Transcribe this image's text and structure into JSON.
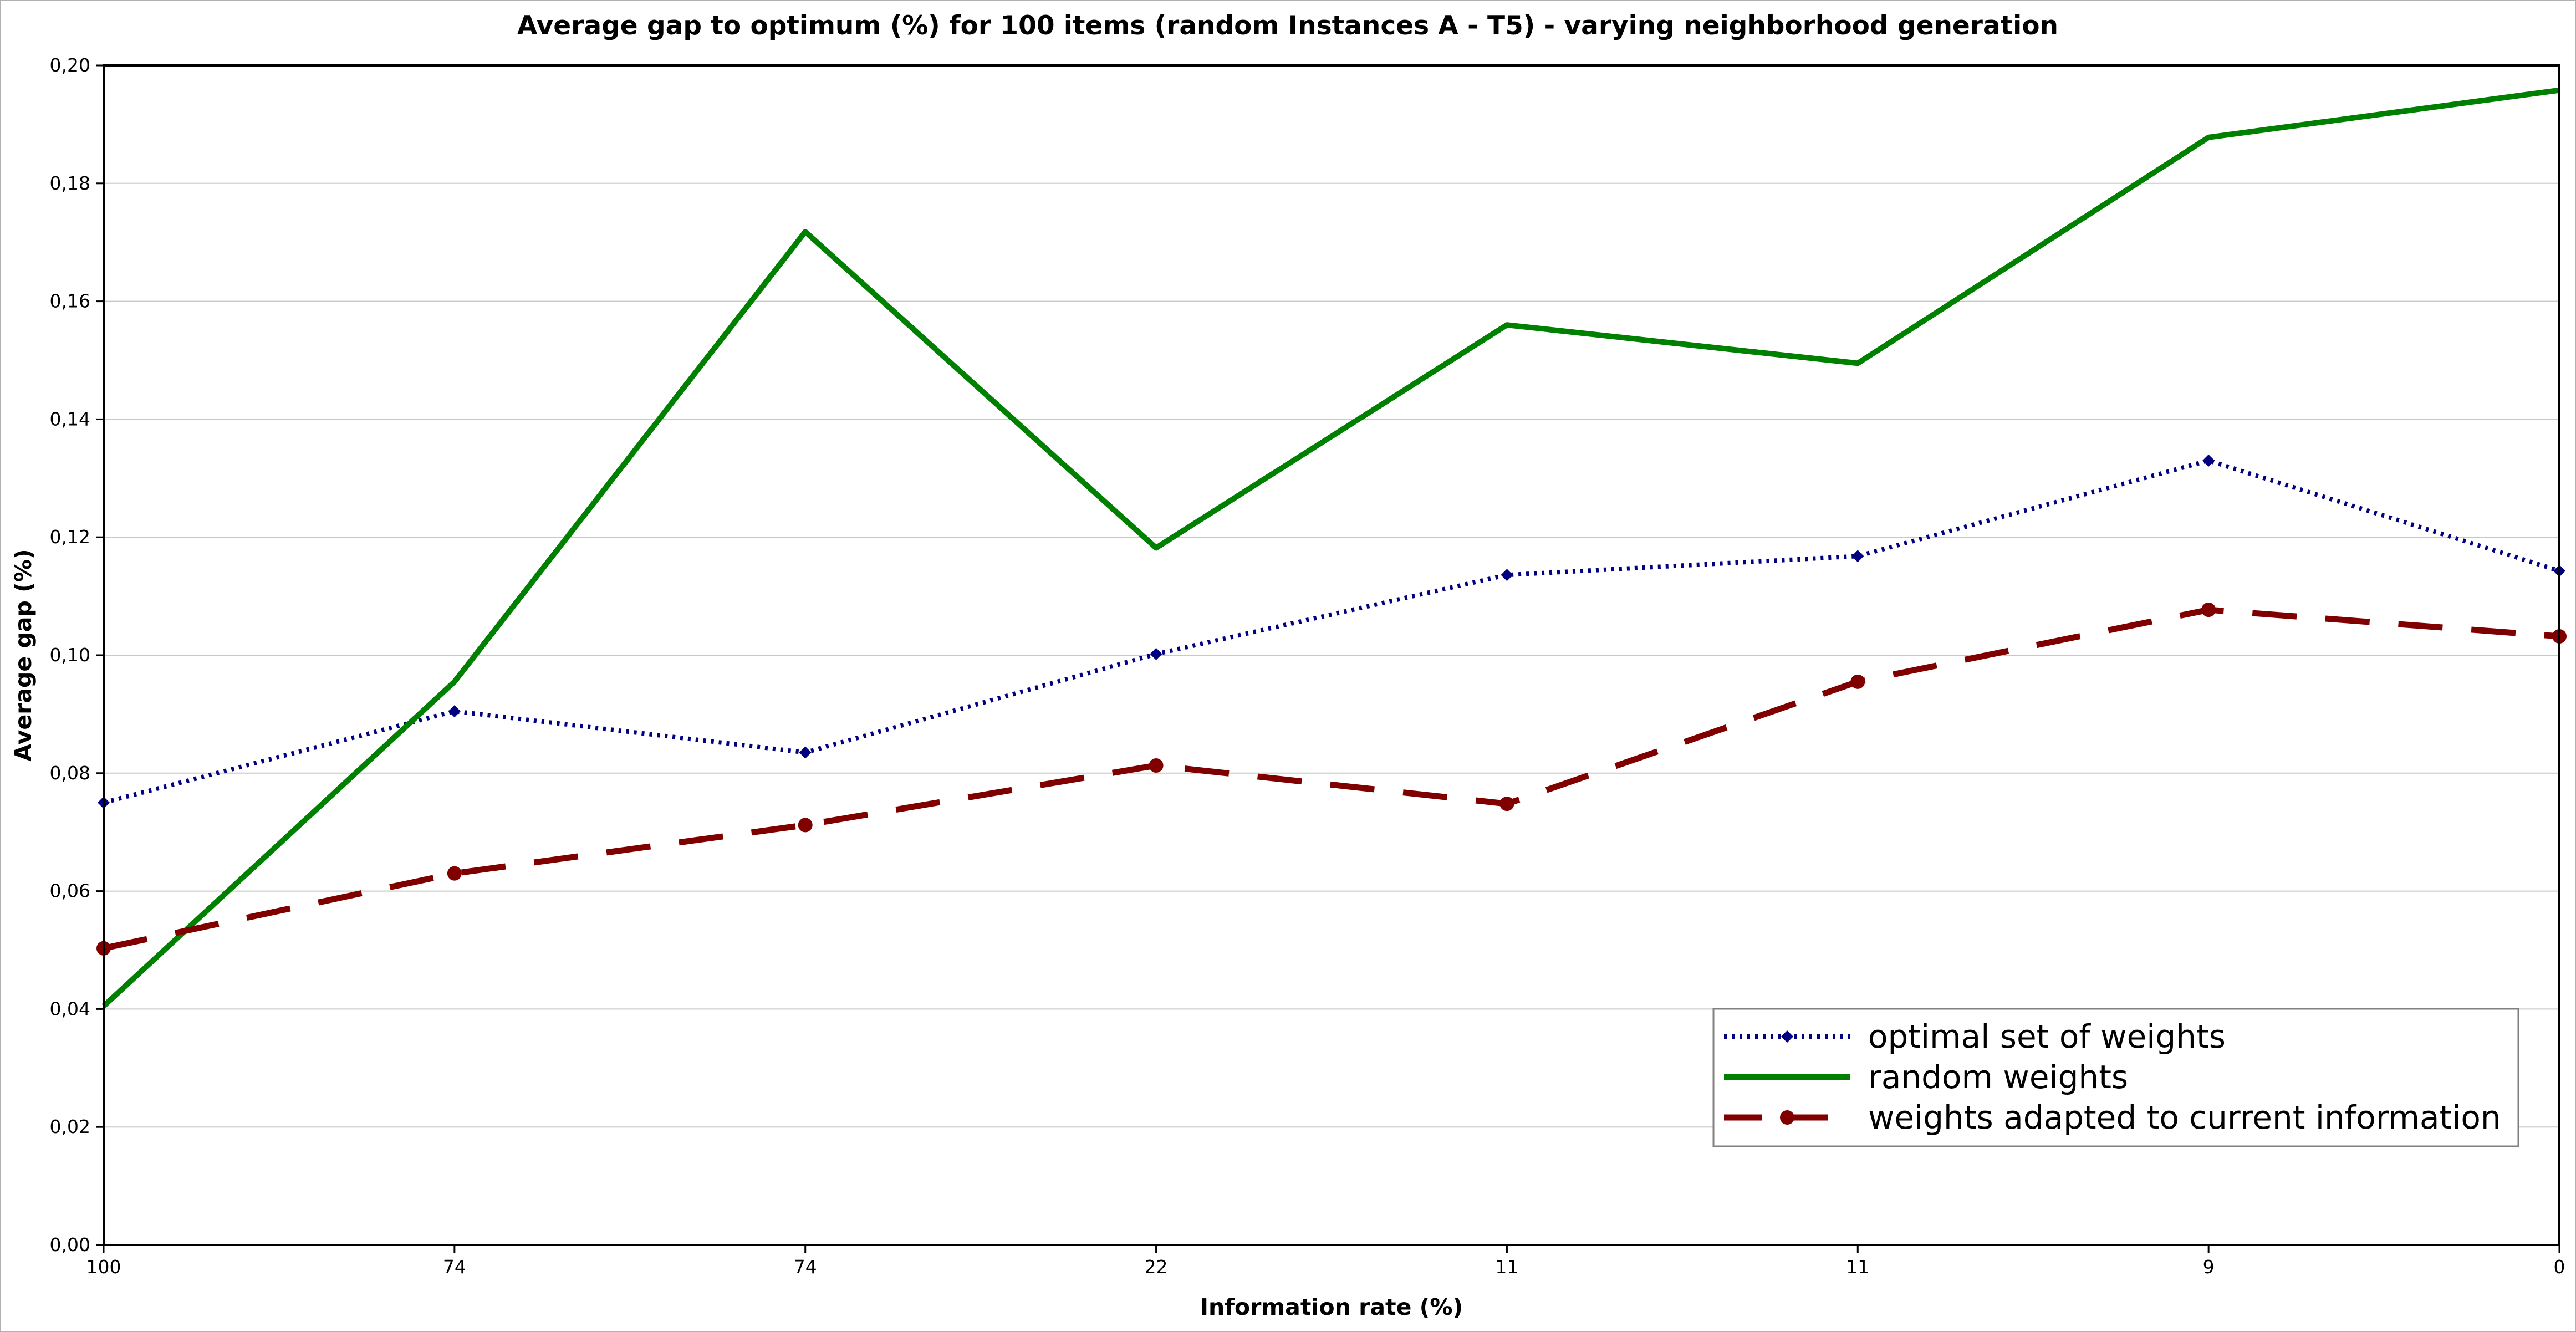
{
  "chart_data": {
    "type": "line",
    "title": "Average gap to optimum (%) for 100 items (random Instances A - T5) - varying neighborhood generation",
    "xlabel": "Information rate (%)",
    "ylabel": "Average gap (%)",
    "categories": [
      "100",
      "74",
      "74",
      "22",
      "11",
      "11",
      "9",
      "0"
    ],
    "ylim": [
      0,
      0.2
    ],
    "yticks": [
      0.0,
      0.02,
      0.04,
      0.06,
      0.08,
      0.1,
      0.12,
      0.14,
      0.16,
      0.18,
      0.2
    ],
    "ytick_labels": [
      "0,00",
      "0,02",
      "0,04",
      "0,06",
      "0,08",
      "0,10",
      "0,12",
      "0,14",
      "0,16",
      "0,18",
      "0,20"
    ],
    "grid": true,
    "legend_position": "bottom-right",
    "series": [
      {
        "name": "optimal set of weights",
        "values": [
          0.075,
          0.0905,
          0.0835,
          0.1002,
          0.1136,
          0.1168,
          0.133,
          0.1143
        ],
        "color": "#000080",
        "line_style": "dotted",
        "marker": "diamond"
      },
      {
        "name": "random weights",
        "values": [
          0.0405,
          0.0955,
          0.1718,
          0.1182,
          0.156,
          0.1495,
          0.1878,
          0.1958
        ],
        "color": "#008000",
        "line_style": "solid",
        "marker": "none"
      },
      {
        "name": "weights adapted to current information",
        "values": [
          0.0503,
          0.063,
          0.0712,
          0.0813,
          0.0748,
          0.0955,
          0.1077,
          0.1032
        ],
        "color": "#800000",
        "line_style": "dashed",
        "marker": "circle"
      }
    ]
  }
}
